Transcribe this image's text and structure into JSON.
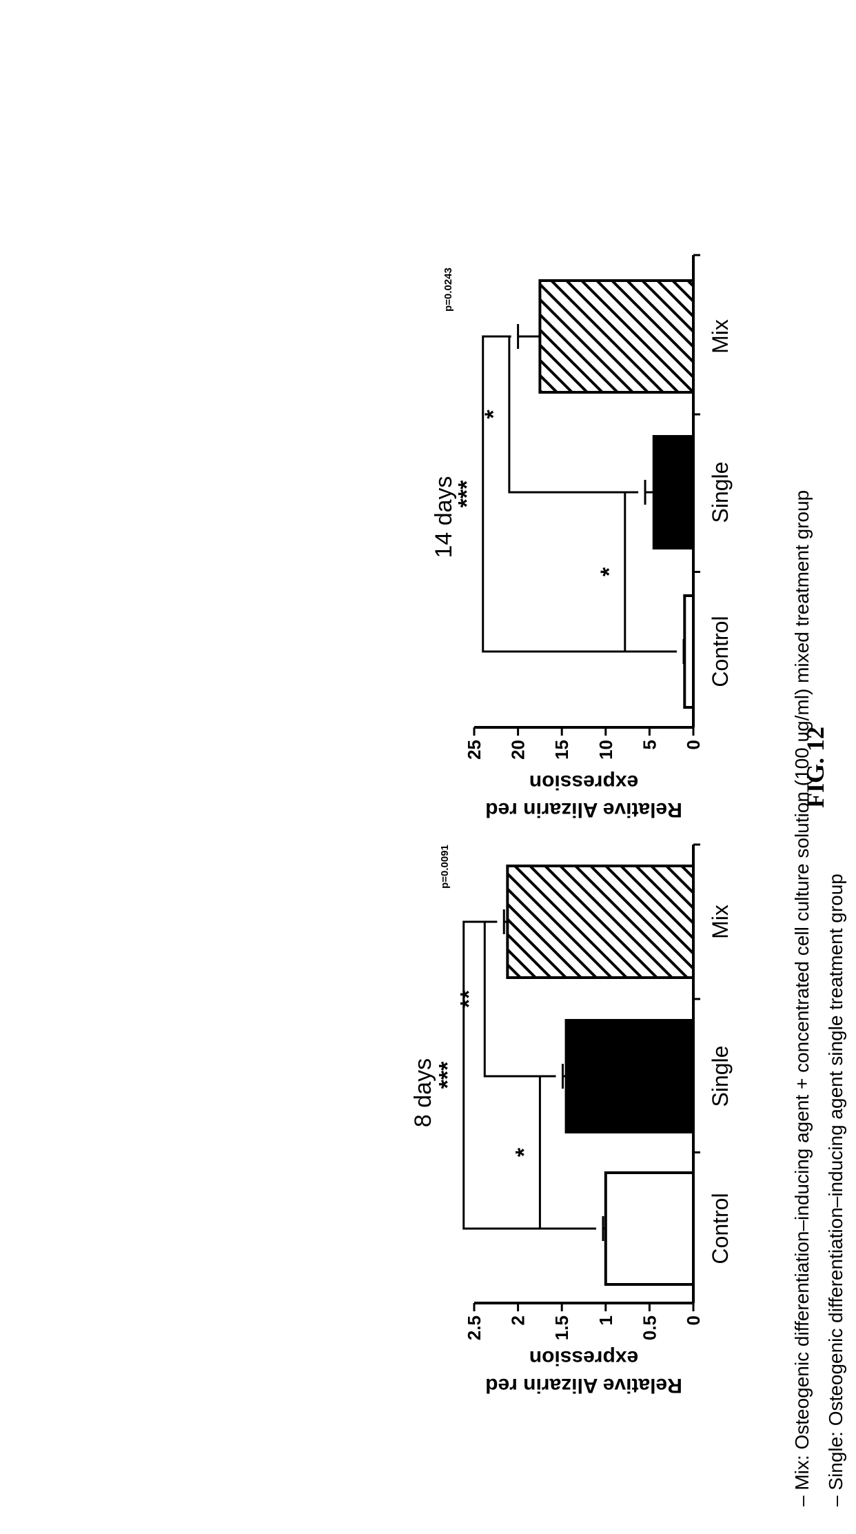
{
  "figure_title": "FIG. 12",
  "chart_data": [
    {
      "type": "bar",
      "title": "8 days",
      "ylabel": [
        "Relative Alizarin red",
        "expression"
      ],
      "ylim": [
        0,
        2.5
      ],
      "yticks": [
        0,
        0.5,
        1,
        1.5,
        2,
        2.5
      ],
      "categories": [
        "Control",
        "Single",
        "Mix"
      ],
      "values": [
        1.0,
        1.45,
        2.12
      ],
      "errors": [
        0.03,
        0.04,
        0.04
      ],
      "bar_fills": [
        "white",
        "black",
        "hatch"
      ],
      "p_value": "p=0.0091",
      "significance": [
        {
          "from": 0,
          "to": 1,
          "level": 1.75,
          "label": "*"
        },
        {
          "from": 1,
          "to": 2,
          "level": 2.38,
          "label": "**"
        },
        {
          "from": 0,
          "to": 2,
          "level": 2.62,
          "label": "***"
        }
      ]
    },
    {
      "type": "bar",
      "title": "14 days",
      "ylabel": [
        "Relative Alizarin red",
        "expression"
      ],
      "ylim": [
        0,
        25
      ],
      "yticks": [
        0,
        5,
        10,
        15,
        20,
        25
      ],
      "categories": [
        "Control",
        "Single",
        "Mix"
      ],
      "values": [
        1.0,
        4.5,
        17.5
      ],
      "errors": [
        0.1,
        1.0,
        2.5
      ],
      "bar_fills": [
        "white",
        "black",
        "hatch"
      ],
      "p_value": "p=0.0243",
      "significance": [
        {
          "from": 0,
          "to": 1,
          "level": 7.8,
          "label": "*"
        },
        {
          "from": 1,
          "to": 2,
          "level": 21.0,
          "label": "*"
        },
        {
          "from": 0,
          "to": 2,
          "level": 24.0,
          "label": "***"
        }
      ]
    }
  ],
  "footnotes": [
    "– Single: Osteogenic differentiation–inducing agent single treatment group",
    "– Mix: Osteogenic differentiation–inducing agent + concentrated cell culture solution (100 ug/ml) mixed treatment group"
  ],
  "colors": {
    "axis": "#000000",
    "single_bar": "#000000",
    "control_bar": "#ffffff"
  }
}
